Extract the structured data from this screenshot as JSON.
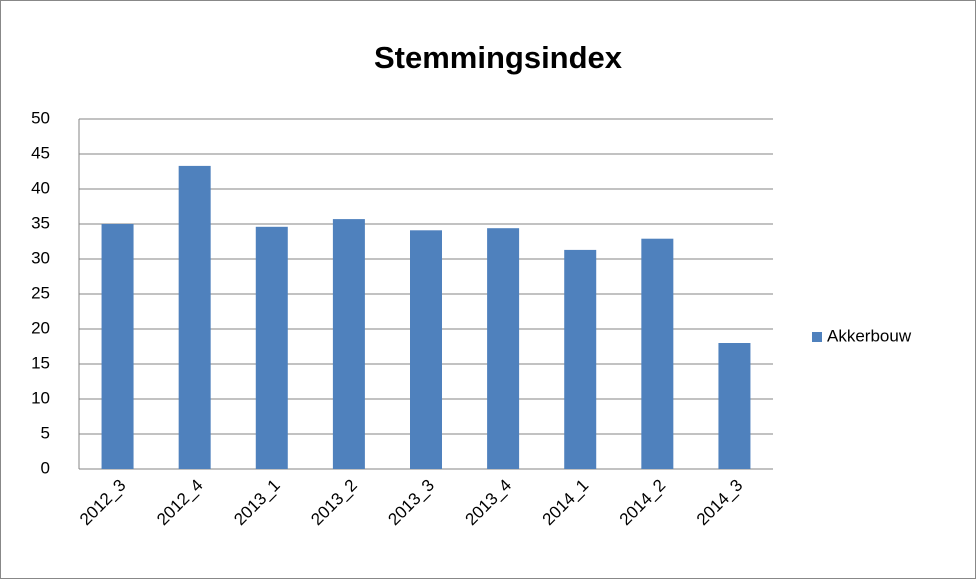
{
  "chart_data": {
    "type": "bar",
    "title": "Stemmingsindex",
    "categories": [
      "2012_3",
      "2012_4",
      "2013_1",
      "2013_2",
      "2013_3",
      "2013_4",
      "2014_1",
      "2014_2",
      "2014_3"
    ],
    "series": [
      {
        "name": "Akkerbouw",
        "color": "#4f81bd",
        "values": [
          35,
          43.3,
          34.6,
          35.7,
          34.1,
          34.4,
          31.3,
          32.9,
          18.0
        ]
      }
    ],
    "ylim": [
      0,
      50
    ],
    "yticks": [
      0,
      5,
      10,
      15,
      20,
      25,
      30,
      35,
      40,
      45,
      50
    ],
    "grid": true,
    "legend": "right"
  }
}
